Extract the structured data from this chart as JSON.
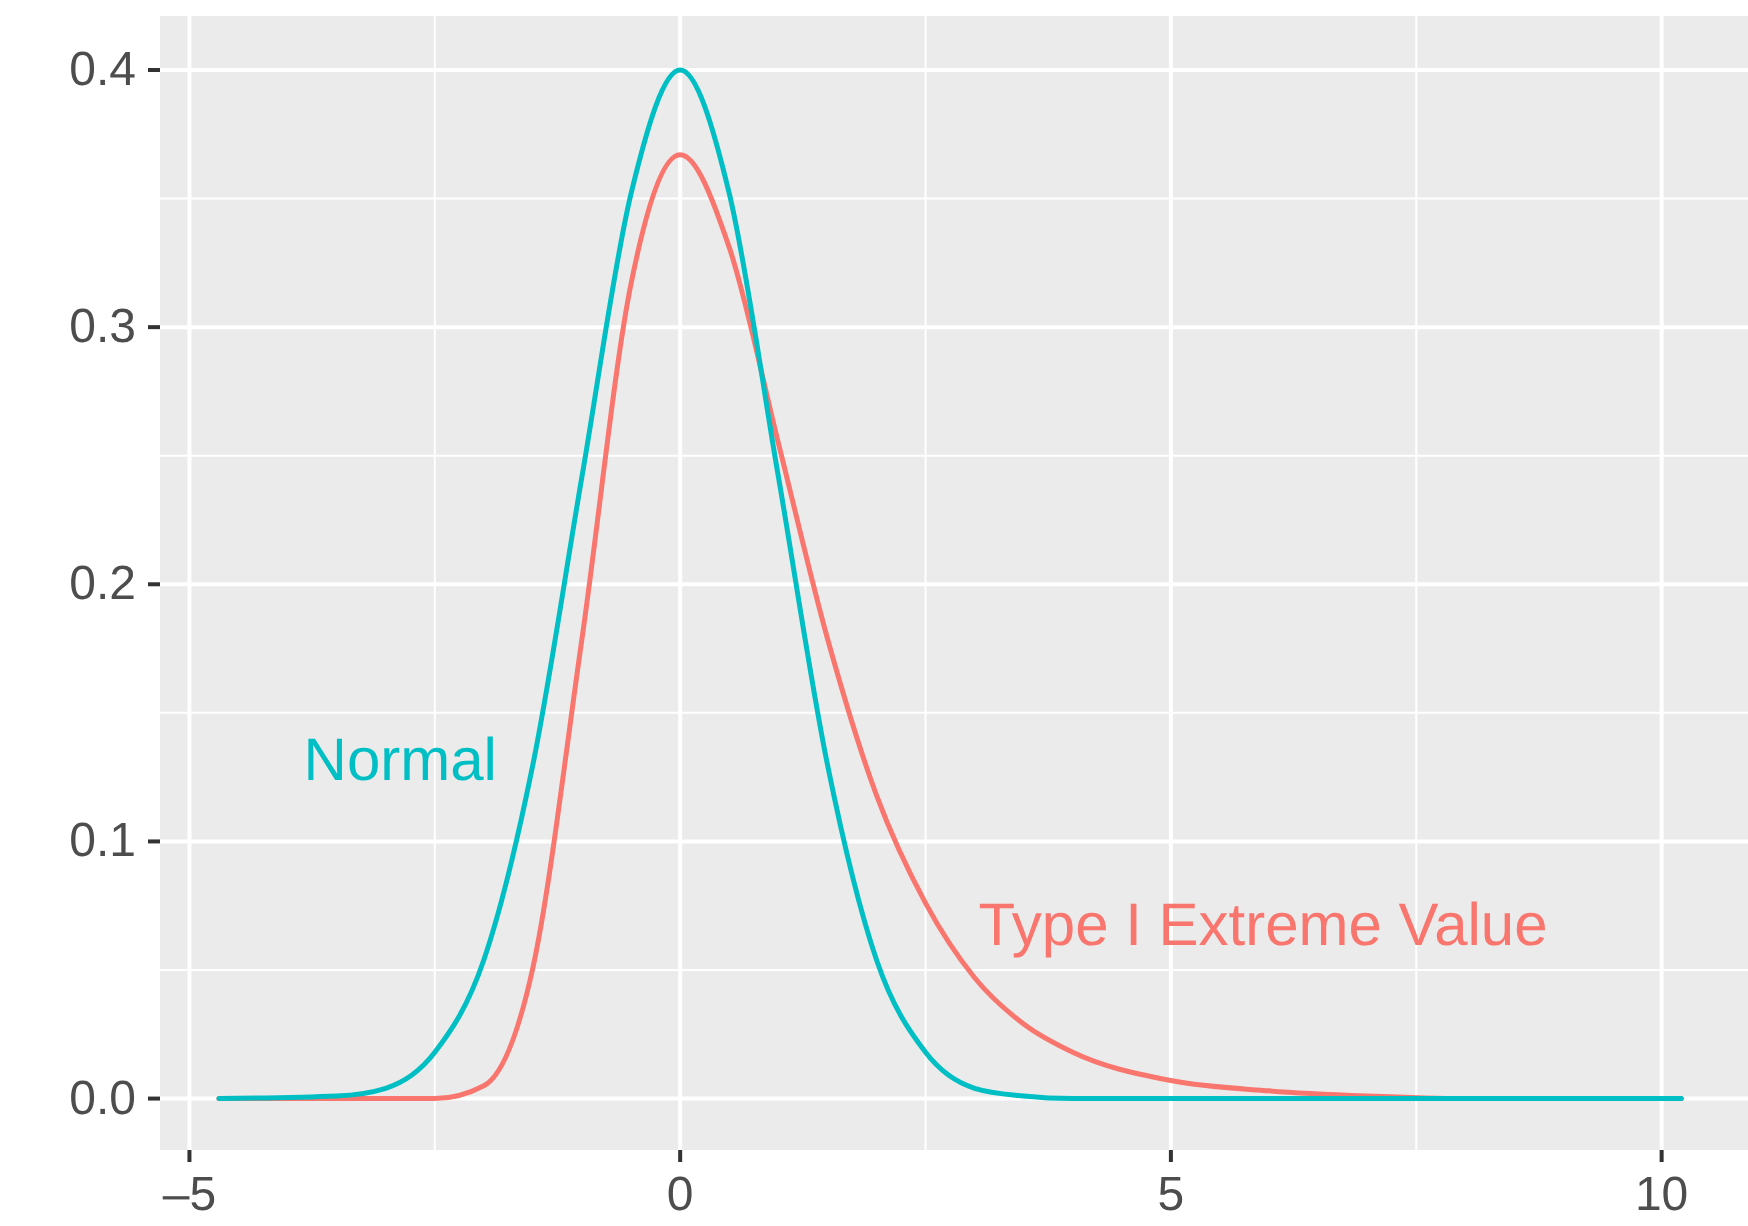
{
  "chart_data": {
    "type": "line",
    "xlim": [
      -5.3,
      10.88
    ],
    "ylim": [
      -0.02,
      0.421
    ],
    "xticks": [
      {
        "value": -5,
        "label": "–5"
      },
      0,
      5,
      10
    ],
    "yticks": [
      {
        "value": 0,
        "label": "0.0"
      },
      0.1,
      0.2,
      0.3,
      0.4
    ],
    "grid": true,
    "marker": "none",
    "line_style": "solid",
    "series": [
      {
        "name": "Type I Extreme Value",
        "color": "#f8766d",
        "x": [
          -4.7,
          -2.5,
          -2,
          -1.5,
          -1,
          -0.5,
          0,
          0.5,
          1,
          1.5,
          2,
          2.5,
          3,
          3.5,
          4,
          5,
          6,
          7,
          8,
          10.2
        ],
        "values": [
          0,
          0,
          0.005,
          0.051,
          0.179,
          0.317,
          0.367,
          0.331,
          0.255,
          0.179,
          0.118,
          0.076,
          0.047,
          0.029,
          0.018,
          0.007,
          0.003,
          0.001,
          0,
          0
        ]
      },
      {
        "name": "Normal",
        "color": "#00bfc4",
        "x": [
          -4.7,
          -3.5,
          -3,
          -2.5,
          -2,
          -1.5,
          -1,
          -0.5,
          0,
          0.5,
          1,
          1.5,
          2,
          2.5,
          3,
          3.5,
          4,
          10.2
        ],
        "values": [
          0,
          0.001,
          0.004,
          0.018,
          0.054,
          0.13,
          0.242,
          0.352,
          0.4,
          0.352,
          0.242,
          0.13,
          0.054,
          0.018,
          0.004,
          0.001,
          0,
          0
        ]
      }
    ]
  }
}
